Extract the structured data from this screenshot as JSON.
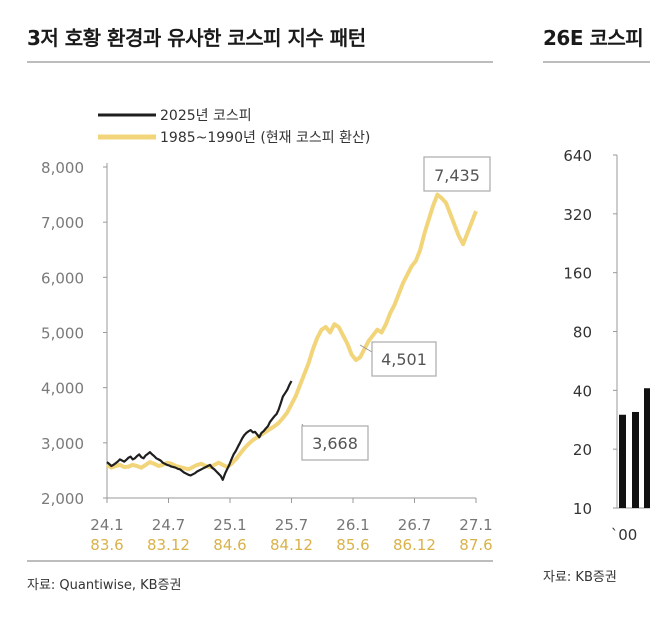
{
  "title_left": "3저 호황 환경과 유사한 코스피 지수 패턴",
  "title_right": "26E 코스피",
  "source_left": "자료: Quantiwise, KB증권",
  "source_right": "자료: KB증권",
  "colors": {
    "series_2025": "#1f1f1f",
    "series_1985": "#f2d57a",
    "axis_bottom_2025": "#777777",
    "axis_bottom_1985": "#d9b24a"
  },
  "chart_data": [
    {
      "type": "line",
      "title": "3저 호황 환경과 유사한 코스피 지수 패턴",
      "ylim": [
        2000,
        8000
      ],
      "yticks": [
        "2,000",
        "3,000",
        "4,000",
        "5,000",
        "6,000",
        "7,000",
        "8,000"
      ],
      "x_tick_labels_top": [
        "24.1",
        "24.7",
        "25.1",
        "25.7",
        "26.1",
        "26.7",
        "27.1"
      ],
      "x_tick_labels_bottom": [
        "83.6",
        "83.12",
        "84.6",
        "84.12",
        "85.6",
        "86.12",
        "87.6"
      ],
      "legend": [
        "2025년 코스피",
        "1985~1990년 (현재 코스피 환산)"
      ],
      "legend_position": "top-left",
      "annotations": [
        "3,668",
        "4,501",
        "7,435"
      ],
      "series": [
        {
          "name": "2025년 코스피",
          "x": [
            0,
            0.25,
            0.5,
            0.75,
            1,
            1.25,
            1.5,
            1.75,
            2,
            2.25,
            2.5,
            2.75,
            3,
            3.25,
            3.5,
            3.75,
            4,
            4.25,
            4.5,
            4.75,
            5,
            5.25,
            5.5,
            5.75,
            6,
            6.25,
            6.5,
            6.75,
            7,
            7.25,
            7.5,
            7.75,
            8,
            8.25,
            8.5,
            8.75,
            9,
            9.25,
            9.5,
            9.75,
            10,
            10.25,
            10.5,
            10.75,
            11,
            11.25,
            11.5,
            11.75,
            12,
            12.25,
            12.5,
            12.75,
            13,
            13.25,
            13.5,
            13.75,
            14,
            14.25,
            14.5,
            14.75,
            15,
            15.25,
            15.5,
            15.75,
            16,
            16.25,
            16.5,
            16.75,
            17,
            17.25,
            17.5,
            17.75,
            18,
            18.25,
            18.5,
            18.75,
            19,
            19.25,
            19.5,
            19.75,
            20,
            20.25,
            20.5,
            20.75,
            21,
            21.25,
            21.5
          ],
          "y": [
            2650,
            2620,
            2580,
            2600,
            2630,
            2660,
            2700,
            2680,
            2660,
            2690,
            2730,
            2750,
            2700,
            2720,
            2760,
            2790,
            2740,
            2720,
            2770,
            2800,
            2830,
            2790,
            2760,
            2720,
            2700,
            2680,
            2640,
            2620,
            2600,
            2590,
            2570,
            2560,
            2550,
            2530,
            2520,
            2490,
            2460,
            2440,
            2420,
            2410,
            2430,
            2450,
            2480,
            2500,
            2520,
            2540,
            2560,
            2580,
            2600,
            2550,
            2520,
            2480,
            2440,
            2400,
            2330,
            2440,
            2520,
            2600,
            2700,
            2790,
            2850,
            2930,
            3000,
            3080,
            3140,
            3180,
            3210,
            3230,
            3190,
            3200,
            3150,
            3100,
            3180,
            3210,
            3260,
            3300,
            3380,
            3430,
            3480,
            3520,
            3600,
            3720,
            3840,
            3900,
            3960,
            4050,
            4120
          ]
        },
        {
          "name": "1985~1990년 (현재 코스피 환산)",
          "x": [
            0,
            0.5,
            1,
            1.5,
            2,
            2.5,
            3,
            3.5,
            4,
            4.5,
            5,
            5.5,
            6,
            6.5,
            7,
            7.5,
            8,
            8.5,
            9,
            9.5,
            10,
            10.5,
            11,
            11.5,
            12,
            12.5,
            13,
            13.5,
            14,
            14.5,
            15,
            15.5,
            16,
            16.5,
            17,
            17.5,
            18,
            18.5,
            19,
            19.5,
            20,
            20.5,
            21,
            21.5,
            22,
            22.5,
            23,
            23.5,
            24,
            24.5,
            25,
            25.5,
            26,
            26.5,
            27,
            27.5,
            28,
            28.5,
            29,
            29.5,
            30,
            30.5,
            31,
            31.5,
            32,
            32.5,
            33,
            33.5,
            34,
            34.5,
            35,
            35.5,
            36,
            36.5,
            37,
            37.5,
            38,
            38.5,
            39,
            39.5,
            40,
            40.5,
            41,
            41.5,
            42,
            42.5,
            43
          ],
          "y": [
            2600,
            2550,
            2580,
            2600,
            2560,
            2570,
            2600,
            2580,
            2550,
            2600,
            2650,
            2620,
            2580,
            2600,
            2640,
            2620,
            2580,
            2560,
            2540,
            2520,
            2560,
            2600,
            2620,
            2580,
            2560,
            2600,
            2640,
            2600,
            2560,
            2620,
            2700,
            2800,
            2900,
            2980,
            3050,
            3100,
            3150,
            3200,
            3250,
            3300,
            3360,
            3450,
            3550,
            3700,
            3850,
            4050,
            4250,
            4450,
            4700,
            4900,
            5050,
            5100,
            5000,
            5150,
            5100,
            4950,
            4800,
            4600,
            4501,
            4550,
            4700,
            4850,
            4950,
            5050,
            5000,
            5150,
            5350,
            5500,
            5700,
            5900,
            6050,
            6200,
            6300,
            6500,
            6800,
            7050,
            7300,
            7500,
            7435,
            7350,
            7150,
            6950,
            6750,
            6600,
            6800,
            7000,
            7200
          ]
        }
      ]
    },
    {
      "type": "bar",
      "title": "26E 코스피",
      "y_scale": "log",
      "ylim": [
        10,
        640
      ],
      "yticks": [
        "10",
        "20",
        "40",
        "80",
        "160",
        "320",
        "640"
      ],
      "x_tick_labels": [
        "`00"
      ],
      "values": [
        30,
        31,
        41
      ]
    }
  ]
}
